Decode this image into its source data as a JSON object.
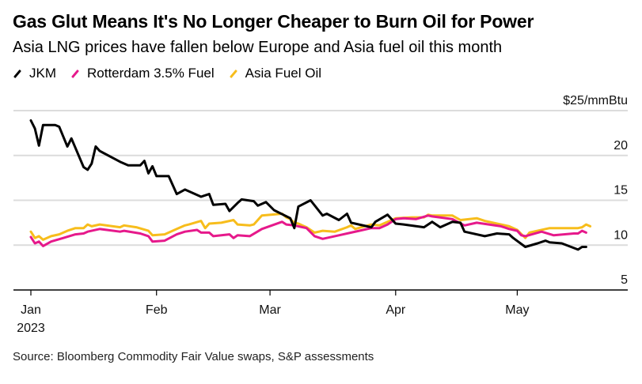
{
  "header": {
    "title": "Gas Glut Means It's No Longer Cheaper to Burn Oil for Power",
    "subtitle": "Asia LNG prices have fallen below Europe and Asia fuel oil this month"
  },
  "legend": [
    {
      "label": "JKM",
      "color": "#000000"
    },
    {
      "label": "Rotterdam 3.5% Fuel",
      "color": "#e6198b"
    },
    {
      "label": "Asia Fuel Oil",
      "color": "#f7bd1c"
    }
  ],
  "footer": {
    "source": "Source: Bloomberg Commodity Fair Value swaps, S&P assessments"
  },
  "chart_data": {
    "type": "line",
    "title": "Gas Glut Means It's No Longer Cheaper to Burn Oil for Power",
    "subtitle": "Asia LNG prices have fallen below Europe and Asia fuel oil this month",
    "xlabel": "",
    "ylabel": "$/mmBtu",
    "x_unit": "days since 2023-01-01",
    "xlim": [
      0,
      148
    ],
    "ylim": [
      5,
      25
    ],
    "grid": true,
    "legend_position": "top-left",
    "y_ticks": [
      {
        "value": 25,
        "label": "$25/mmBtu"
      },
      {
        "value": 20,
        "label": "20"
      },
      {
        "value": 15,
        "label": "15"
      },
      {
        "value": 10,
        "label": "10"
      },
      {
        "value": 5,
        "label": "5"
      }
    ],
    "x_ticks": [
      {
        "day": 0,
        "label": "Jan",
        "sublabel": "2023"
      },
      {
        "day": 31,
        "label": "Feb",
        "sublabel": ""
      },
      {
        "day": 59,
        "label": "Mar",
        "sublabel": ""
      },
      {
        "day": 90,
        "label": "Apr",
        "sublabel": ""
      },
      {
        "day": 120,
        "label": "May",
        "sublabel": ""
      }
    ],
    "series": [
      {
        "name": "Asia Fuel Oil",
        "color": "#f7bd1c",
        "x": [
          0,
          1,
          2,
          3,
          5,
          7,
          9,
          11,
          13,
          14,
          15,
          17,
          22,
          23,
          26,
          29,
          30,
          33,
          36,
          38,
          39,
          42,
          43,
          44,
          47,
          50,
          51,
          54,
          55,
          57,
          62,
          63,
          64,
          65,
          66,
          68,
          70,
          72,
          75,
          78,
          79,
          80,
          84,
          86,
          90,
          94,
          97,
          98,
          99,
          104,
          106,
          110,
          112,
          114,
          116,
          118,
          120,
          122,
          123,
          127,
          128,
          135,
          136,
          137,
          138
        ],
        "values": [
          11.5,
          10.8,
          11.0,
          10.6,
          11.0,
          11.2,
          11.6,
          11.9,
          11.9,
          12.3,
          12.1,
          12.3,
          12.0,
          12.2,
          12.0,
          11.6,
          11.1,
          11.2,
          11.8,
          12.2,
          12.3,
          12.7,
          11.9,
          12.4,
          12.5,
          12.8,
          12.3,
          12.2,
          12.3,
          13.3,
          13.5,
          13.1,
          12.9,
          12.5,
          12.4,
          12.0,
          11.4,
          11.6,
          11.5,
          12.0,
          12.2,
          11.8,
          12.3,
          12.2,
          13.0,
          13.1,
          13.1,
          13.4,
          13.3,
          13.3,
          12.8,
          13.0,
          12.7,
          12.5,
          12.3,
          12.1,
          11.7,
          10.8,
          11.4,
          11.8,
          11.9,
          11.9,
          12.0,
          12.3,
          12.1
        ]
      },
      {
        "name": "Rotterdam 3.5% Fuel",
        "color": "#e6198b",
        "x": [
          0,
          1,
          2,
          3,
          5,
          8,
          11,
          13,
          14,
          17,
          22,
          23,
          27,
          29,
          30,
          33,
          36,
          38,
          41,
          42,
          44,
          45,
          49,
          50,
          51,
          54,
          57,
          62,
          63,
          65,
          68,
          70,
          72,
          76,
          79,
          81,
          84,
          86,
          88,
          90,
          92,
          95,
          98,
          99,
          104,
          107,
          110,
          113,
          116,
          118,
          120,
          121,
          122,
          126,
          129,
          134,
          135,
          136,
          137
        ],
        "values": [
          10.9,
          10.2,
          10.4,
          9.9,
          10.4,
          10.8,
          11.2,
          11.3,
          11.5,
          11.8,
          11.5,
          11.6,
          11.3,
          11.0,
          10.4,
          10.5,
          11.2,
          11.5,
          11.7,
          11.4,
          11.4,
          11.0,
          11.2,
          10.8,
          11.1,
          11.0,
          11.8,
          12.6,
          12.3,
          12.2,
          11.9,
          11.0,
          10.7,
          11.1,
          11.4,
          11.6,
          11.9,
          11.9,
          12.3,
          12.9,
          13.0,
          12.9,
          13.3,
          13.2,
          12.9,
          12.2,
          12.5,
          12.3,
          12.1,
          11.8,
          11.6,
          11.1,
          11.0,
          11.5,
          11.1,
          11.3,
          11.3,
          11.6,
          11.4
        ]
      },
      {
        "name": "JKM",
        "color": "#000000",
        "x": [
          0,
          1,
          2,
          3,
          6,
          7,
          9,
          10,
          13,
          14,
          15,
          16,
          17,
          22,
          24,
          27,
          28,
          29,
          30,
          31,
          34,
          36,
          38,
          42,
          44,
          45,
          48,
          49,
          51,
          52,
          55,
          56,
          58,
          60,
          64,
          65,
          66,
          69,
          72,
          73,
          76,
          78,
          79,
          84,
          85,
          88,
          90,
          92,
          97,
          99,
          101,
          104,
          106,
          107,
          112,
          115,
          118,
          119,
          122,
          125,
          127,
          128,
          131,
          135,
          136,
          137
        ],
        "values": [
          23.9,
          23.0,
          21.1,
          23.4,
          23.4,
          23.2,
          21.0,
          21.9,
          18.7,
          18.4,
          19.1,
          21.0,
          20.5,
          19.3,
          18.9,
          18.9,
          19.4,
          18.0,
          18.8,
          17.7,
          17.7,
          15.7,
          16.2,
          15.4,
          15.7,
          14.5,
          14.6,
          13.8,
          14.7,
          15.1,
          14.9,
          14.4,
          14.8,
          13.9,
          13.0,
          11.9,
          14.3,
          15.0,
          13.3,
          13.5,
          12.8,
          13.5,
          12.5,
          12.0,
          12.6,
          13.4,
          12.4,
          12.3,
          12.0,
          12.6,
          12.0,
          12.6,
          12.5,
          11.5,
          11.0,
          11.3,
          11.2,
          10.8,
          9.8,
          10.2,
          10.5,
          10.3,
          10.2,
          9.5,
          9.8,
          9.8
        ]
      }
    ]
  }
}
